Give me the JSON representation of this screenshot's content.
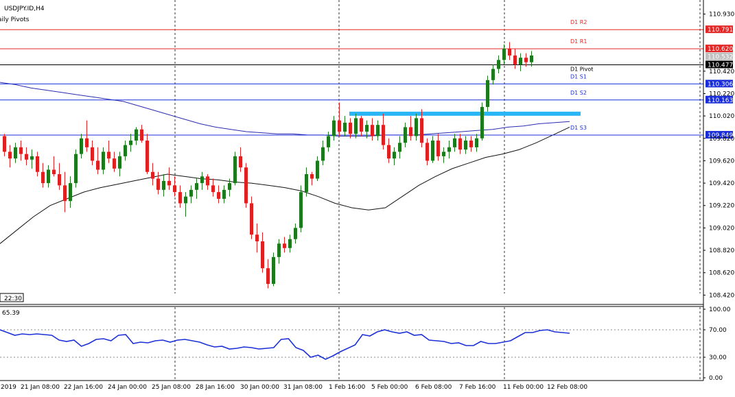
{
  "chart_data": [
    {
      "type": "candlestick",
      "title": "USDJPY.ID,H4",
      "indicator_label": "Daily Pivots",
      "ylim": [
        108.3,
        110.94
      ],
      "y_ticks": [
        "110.930",
        "110.420",
        "110.220",
        "110.020",
        "109.820",
        "109.620",
        "109.420",
        "109.220",
        "109.020",
        "108.820",
        "108.620",
        "108.420"
      ],
      "x_ticks": [
        "2019",
        "21 Jan 08:00",
        "22 Jan 16:00",
        "24 Jan 00:00",
        "25 Jan 08:00",
        "28 Jan 16:00",
        "30 Jan 00:00",
        "31 Jan 08:00",
        "1 Feb 16:00",
        "5 Feb 00:00",
        "6 Feb 08:00",
        "7 Feb 16:00",
        "11 Feb 00:00",
        "12 Feb 08:00"
      ],
      "time_badge": "22:30",
      "pivot_levels": [
        {
          "name": "D1 R2",
          "value": 110.791,
          "label": "110.791",
          "color": "#e32626"
        },
        {
          "name": "D1 R1",
          "value": 110.62,
          "label": "110.620",
          "color": "#e32626"
        },
        {
          "name": "D1 Pivot",
          "value": 110.477,
          "label": "110.477",
          "color": "#000000"
        },
        {
          "name": "D1 S1",
          "value": 110.306,
          "label": "110.306",
          "color": "#1b2fd8"
        },
        {
          "name": "D1 S2",
          "value": 110.163,
          "label": "110.163",
          "color": "#1b2fd8"
        },
        {
          "name": "D1 S3",
          "value": 109.849,
          "label": "109.849",
          "color": "#1b2fd8"
        }
      ],
      "current_price_label": "110.532",
      "resistance_zone": {
        "price": 110.04,
        "color": "#29b6f6"
      },
      "ma_colors": {
        "slow": "#2a2ab0",
        "fast": "#111111"
      },
      "candle_colors": {
        "up": "#1b7a1b",
        "down": "#e02020"
      },
      "candles": [
        [
          109.84,
          109.86,
          109.66,
          109.7
        ],
        [
          109.7,
          109.76,
          109.56,
          109.64
        ],
        [
          109.64,
          109.78,
          109.6,
          109.74
        ],
        [
          109.74,
          109.8,
          109.62,
          109.68
        ],
        [
          109.68,
          109.74,
          109.58,
          109.63
        ],
        [
          109.63,
          109.72,
          109.55,
          109.66
        ],
        [
          109.66,
          109.7,
          109.48,
          109.52
        ],
        [
          109.52,
          109.6,
          109.38,
          109.42
        ],
        [
          109.42,
          109.58,
          109.38,
          109.54
        ],
        [
          109.54,
          109.66,
          109.48,
          109.5
        ],
        [
          109.5,
          109.6,
          109.36,
          109.4
        ],
        [
          109.4,
          109.52,
          109.16,
          109.26
        ],
        [
          109.26,
          109.48,
          109.2,
          109.42
        ],
        [
          109.42,
          109.72,
          109.38,
          109.68
        ],
        [
          109.68,
          109.86,
          109.64,
          109.82
        ],
        [
          109.82,
          109.98,
          109.7,
          109.74
        ],
        [
          109.74,
          109.8,
          109.58,
          109.62
        ],
        [
          109.62,
          109.74,
          109.5,
          109.54
        ],
        [
          109.54,
          109.74,
          109.5,
          109.7
        ],
        [
          109.7,
          109.8,
          109.6,
          109.64
        ],
        [
          109.64,
          109.7,
          109.52,
          109.55
        ],
        [
          109.55,
          109.7,
          109.48,
          109.66
        ],
        [
          109.66,
          109.8,
          109.62,
          109.76
        ],
        [
          109.76,
          109.86,
          109.7,
          109.8
        ],
        [
          109.8,
          109.92,
          109.76,
          109.9
        ],
        [
          109.9,
          109.94,
          109.78,
          109.8
        ],
        [
          109.8,
          109.86,
          109.5,
          109.52
        ],
        [
          109.52,
          109.6,
          109.4,
          109.46
        ],
        [
          109.46,
          109.52,
          109.32,
          109.36
        ],
        [
          109.36,
          109.5,
          109.3,
          109.44
        ],
        [
          109.44,
          109.56,
          109.36,
          109.4
        ],
        [
          109.4,
          109.48,
          109.3,
          109.34
        ],
        [
          109.34,
          109.4,
          109.2,
          109.24
        ],
        [
          109.24,
          109.34,
          109.12,
          109.3
        ],
        [
          109.3,
          109.4,
          109.24,
          109.36
        ],
        [
          109.36,
          109.46,
          109.28,
          109.42
        ],
        [
          109.42,
          109.52,
          109.36,
          109.48
        ],
        [
          109.48,
          109.5,
          109.36,
          109.4
        ],
        [
          109.4,
          109.46,
          109.3,
          109.34
        ],
        [
          109.34,
          109.4,
          109.24,
          109.28
        ],
        [
          109.28,
          109.4,
          109.24,
          109.36
        ],
        [
          109.36,
          109.46,
          109.3,
          109.42
        ],
        [
          109.42,
          109.7,
          109.4,
          109.66
        ],
        [
          109.66,
          109.74,
          109.52,
          109.56
        ],
        [
          109.56,
          109.6,
          109.2,
          109.24
        ],
        [
          109.24,
          109.3,
          108.92,
          108.96
        ],
        [
          108.96,
          109.06,
          108.8,
          108.9
        ],
        [
          108.9,
          108.98,
          108.62,
          108.66
        ],
        [
          108.66,
          108.74,
          108.48,
          108.52
        ],
        [
          108.52,
          108.8,
          108.5,
          108.76
        ],
        [
          108.76,
          108.92,
          108.7,
          108.88
        ],
        [
          108.88,
          108.94,
          108.8,
          108.84
        ],
        [
          108.84,
          108.96,
          108.8,
          108.92
        ],
        [
          108.92,
          109.06,
          108.88,
          109.02
        ],
        [
          109.02,
          109.4,
          108.98,
          109.34
        ],
        [
          109.34,
          109.56,
          109.3,
          109.5
        ],
        [
          109.5,
          109.52,
          109.4,
          109.46
        ],
        [
          109.46,
          109.66,
          109.44,
          109.62
        ],
        [
          109.62,
          109.8,
          109.58,
          109.74
        ],
        [
          109.74,
          109.88,
          109.7,
          109.84
        ],
        [
          109.84,
          110.02,
          109.8,
          109.98
        ],
        [
          109.98,
          110.14,
          109.84,
          109.88
        ],
        [
          109.88,
          110.02,
          109.84,
          109.96
        ],
        [
          109.96,
          110.0,
          109.82,
          109.86
        ],
        [
          109.86,
          110.04,
          109.82,
          110.0
        ],
        [
          110.0,
          110.02,
          109.84,
          109.88
        ],
        [
          109.88,
          109.98,
          109.82,
          109.94
        ],
        [
          109.94,
          110.0,
          109.8,
          109.84
        ],
        [
          109.84,
          109.98,
          109.8,
          109.94
        ],
        [
          109.94,
          110.04,
          109.72,
          109.76
        ],
        [
          109.76,
          109.82,
          109.6,
          109.64
        ],
        [
          109.64,
          109.74,
          109.58,
          109.7
        ],
        [
          109.7,
          109.84,
          109.64,
          109.78
        ],
        [
          109.78,
          109.96,
          109.74,
          109.92
        ],
        [
          109.92,
          110.02,
          109.8,
          109.84
        ],
        [
          109.84,
          110.04,
          109.8,
          110.0
        ],
        [
          110.0,
          110.08,
          109.74,
          109.78
        ],
        [
          109.78,
          109.82,
          109.58,
          109.62
        ],
        [
          109.62,
          109.84,
          109.6,
          109.8
        ],
        [
          109.8,
          109.86,
          109.62,
          109.66
        ],
        [
          109.66,
          109.74,
          109.6,
          109.7
        ],
        [
          109.7,
          109.8,
          109.64,
          109.74
        ],
        [
          109.74,
          109.86,
          109.7,
          109.82
        ],
        [
          109.82,
          109.86,
          109.68,
          109.72
        ],
        [
          109.72,
          109.84,
          109.68,
          109.8
        ],
        [
          109.8,
          109.84,
          109.7,
          109.74
        ],
        [
          109.74,
          109.86,
          109.7,
          109.82
        ],
        [
          109.82,
          110.14,
          109.8,
          110.1
        ],
        [
          110.1,
          110.38,
          110.06,
          110.34
        ],
        [
          110.34,
          110.48,
          110.3,
          110.44
        ],
        [
          110.44,
          110.56,
          110.4,
          110.52
        ],
        [
          110.52,
          110.66,
          110.48,
          110.62
        ],
        [
          110.62,
          110.68,
          110.52,
          110.56
        ],
        [
          110.56,
          110.62,
          110.44,
          110.48
        ],
        [
          110.48,
          110.58,
          110.42,
          110.54
        ],
        [
          110.54,
          110.58,
          110.46,
          110.5
        ],
        [
          110.5,
          110.6,
          110.46,
          110.56
        ]
      ],
      "ma_slow": [
        110.32,
        110.3,
        110.27,
        110.25,
        110.23,
        110.21,
        110.19,
        110.17,
        110.15,
        110.11,
        110.07,
        110.03,
        109.99,
        109.95,
        109.92,
        109.9,
        109.88,
        109.87,
        109.86,
        109.86,
        109.85,
        109.85,
        109.84,
        109.84,
        109.84,
        109.85,
        109.85,
        109.85,
        109.86,
        109.87,
        109.88,
        109.89,
        109.9,
        109.92,
        109.93,
        109.95,
        109.96,
        109.97
      ],
      "ma_fast": [
        108.88,
        109.0,
        109.12,
        109.22,
        109.28,
        109.34,
        109.38,
        109.41,
        109.44,
        109.47,
        109.5,
        109.48,
        109.46,
        109.45,
        109.43,
        109.42,
        109.4,
        109.38,
        109.35,
        109.3,
        109.24,
        109.2,
        109.18,
        109.2,
        109.3,
        109.4,
        109.48,
        109.55,
        109.6,
        109.65,
        109.68,
        109.72,
        109.78,
        109.85,
        109.92
      ],
      "rsi": {
        "label": "65.39",
        "ylim": [
          0,
          100
        ],
        "ticks": [
          "100.00",
          "70.00",
          "30.00",
          "0.00"
        ],
        "levels": [
          70,
          30
        ],
        "color": "#1b2fd8",
        "values": [
          70,
          66,
          62,
          64,
          63,
          64,
          63,
          62,
          55,
          53,
          55,
          46,
          50,
          56,
          57,
          54,
          62,
          63,
          50,
          52,
          51,
          54,
          55,
          52,
          55,
          56,
          54,
          52,
          48,
          45,
          46,
          42,
          43,
          45,
          44,
          42,
          43,
          44,
          56,
          57,
          44,
          40,
          30,
          33,
          27,
          32,
          38,
          43,
          48,
          63,
          61,
          67,
          70,
          67,
          65,
          67,
          62,
          63,
          55,
          54,
          53,
          50,
          51,
          47,
          47,
          53,
          50,
          50,
          52,
          54,
          60,
          66,
          66,
          69,
          70,
          67,
          66,
          65
        ]
      }
    }
  ]
}
